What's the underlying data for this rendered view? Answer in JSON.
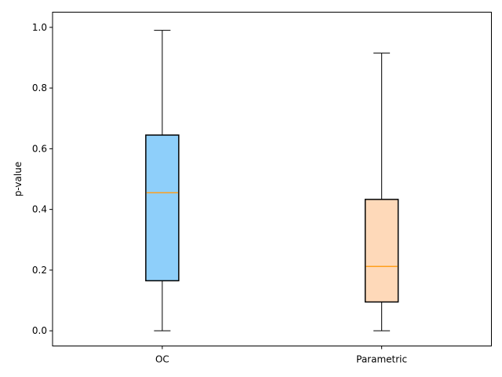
{
  "chart_data": {
    "type": "boxplot",
    "title": "",
    "xlabel": "",
    "ylabel": "p-value",
    "ylim": [
      -0.05,
      1.05
    ],
    "yticks": [
      "0.0",
      "0.2",
      "0.4",
      "0.6",
      "0.8",
      "1.0"
    ],
    "grid": false,
    "legend": "none",
    "categories": [
      "OC",
      "Parametric"
    ],
    "boxes": [
      {
        "category": "OC",
        "whisker_low": 0.0,
        "q1": 0.165,
        "median": 0.455,
        "q3": 0.645,
        "whisker_high": 0.99,
        "fill": "#8ecffa"
      },
      {
        "category": "Parametric",
        "whisker_low": 0.0,
        "q1": 0.095,
        "median": 0.212,
        "q3": 0.433,
        "whisker_high": 0.915,
        "fill": "#fed9b9"
      }
    ],
    "median_color": "#ff9f1c",
    "edge_color": "#000000"
  }
}
